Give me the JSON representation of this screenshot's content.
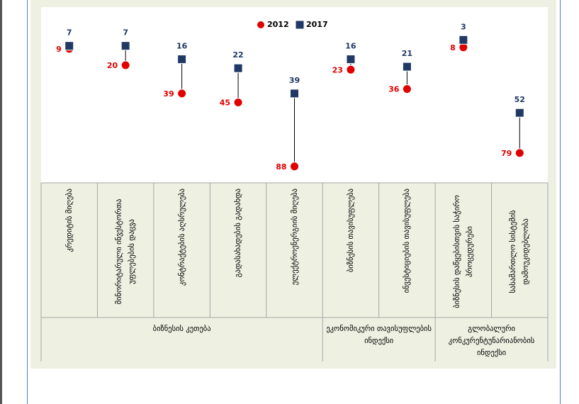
{
  "chart_data": {
    "type": "dot-range",
    "categories": [
      "კრედიტის მიღება",
      "მინორიტარული ინვესტორთა უფლებების დაცვა",
      "კონტრაქტების აღსრულება",
      "გადასახადების გადახდა",
      "ელექტროენერგიის მიღება",
      "ბიზნესის თავისუფლება",
      "ინვესტიციების თავისუფლება",
      "ბიზნესის დაწყებისთვის საჭირო პროცედურები",
      "სასამართლო სისტემის დამოუკიდებლობა"
    ],
    "groups": [
      {
        "label": "ბიზნესის კეთება",
        "span": 5
      },
      {
        "label": "ეკონომიკური თავისუფლების ინდექსი",
        "span": 2
      },
      {
        "label": "გლობალური კონკურენტუნარიანობის ინდექსი",
        "span": 2
      }
    ],
    "series": [
      {
        "name": "2012",
        "color": "#e00000",
        "marker": "circle",
        "values": [
          9,
          20,
          39,
          45,
          88,
          23,
          36,
          8,
          79
        ]
      },
      {
        "name": "2017",
        "color": "#1f3864",
        "marker": "square",
        "values": [
          7,
          7,
          16,
          22,
          39,
          16,
          21,
          3,
          52
        ]
      }
    ],
    "ylim": [
      0,
      100
    ],
    "reverse_y": true,
    "legend": "top"
  }
}
